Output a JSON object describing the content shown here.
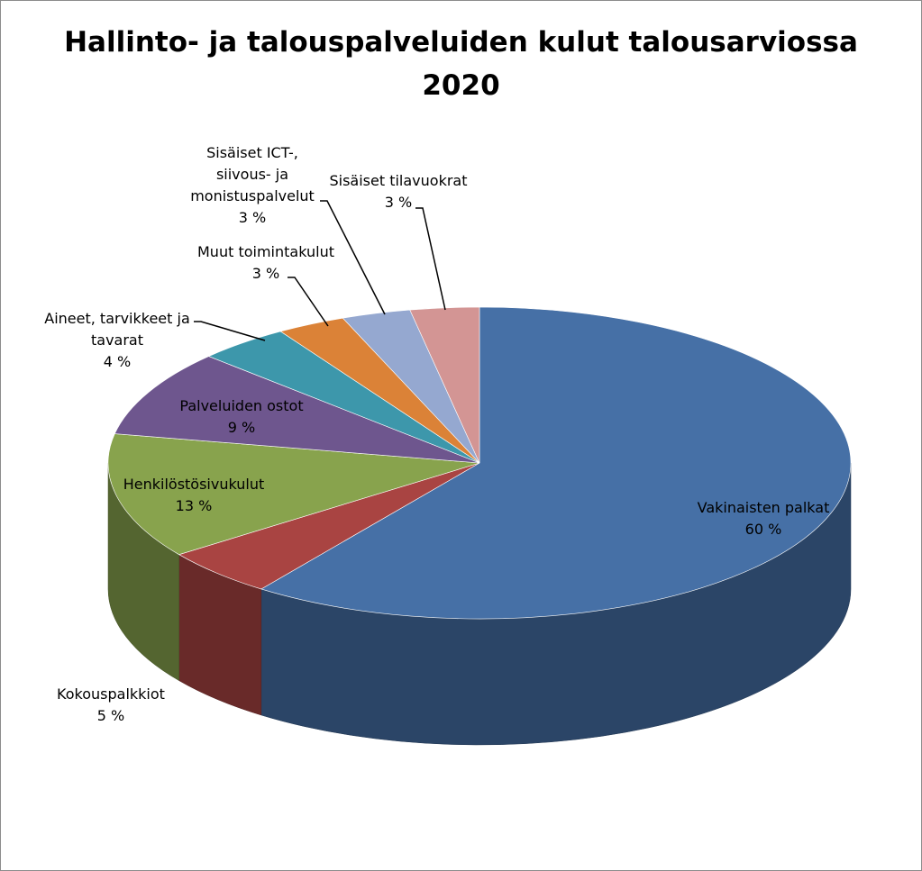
{
  "chart_data": {
    "type": "pie",
    "variant": "3d",
    "title": [
      "Hallinto- ja talouspalveluiden kulut talousarviossa",
      "2020"
    ],
    "slices": [
      {
        "label": [
          "Vakinaisten palkat"
        ],
        "value": 60,
        "value_label": "60 %",
        "color": "#4670A6"
      },
      {
        "label": [
          "Kokouspalkkiot"
        ],
        "value": 5,
        "value_label": "5 %",
        "color": "#A94442"
      },
      {
        "label": [
          "Henkilöstösivukulut"
        ],
        "value": 13,
        "value_label": "13 %",
        "color": "#88A34D"
      },
      {
        "label": [
          "Palveluiden ostot"
        ],
        "value": 9,
        "value_label": "9 %",
        "color": "#6E568E"
      },
      {
        "label": [
          "Aineet, tarvikkeet ja",
          "tavarat"
        ],
        "value": 4,
        "value_label": "4 %",
        "color": "#3D97AB"
      },
      {
        "label": [
          "Muut toimintakulut"
        ],
        "value": 3,
        "value_label": "3 %",
        "color": "#DB8237"
      },
      {
        "label": [
          "Sisäiset ICT-,",
          "siivous- ja",
          "monistuspalvelut"
        ],
        "value": 3,
        "value_label": "3 %",
        "color": "#95A8D0"
      },
      {
        "label": [
          "Sisäiset tilavuokrat"
        ],
        "value": 3,
        "value_label": "3 %",
        "color": "#D39594"
      }
    ]
  }
}
